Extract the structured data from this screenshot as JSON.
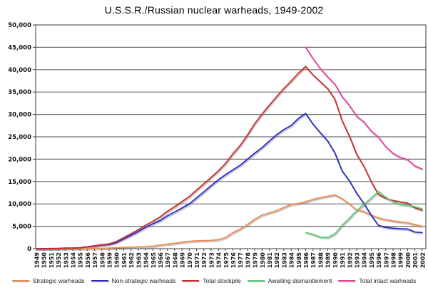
{
  "chart_data": {
    "type": "line",
    "title": "U.S.S.R./Russian nuclear warheads, 1949-2002",
    "xlabel": "",
    "ylabel": "",
    "grid": true,
    "legend_position": "bottom",
    "ylim": [
      0,
      50000
    ],
    "ytick_step": 5000,
    "ytick_labels": [
      "0",
      "5,000",
      "10,000",
      "15,000",
      "20,000",
      "25,000",
      "30,000",
      "35,000",
      "40,000",
      "45,000",
      "50,000"
    ],
    "x": [
      1949,
      1950,
      1951,
      1952,
      1953,
      1954,
      1955,
      1956,
      1957,
      1958,
      1959,
      1960,
      1961,
      1962,
      1963,
      1964,
      1965,
      1966,
      1967,
      1968,
      1969,
      1970,
      1971,
      1972,
      1973,
      1974,
      1975,
      1976,
      1977,
      1978,
      1979,
      1980,
      1981,
      1982,
      1983,
      1984,
      1985,
      1986,
      1987,
      1988,
      1989,
      1990,
      1991,
      1992,
      1993,
      1994,
      1995,
      1996,
      1997,
      1998,
      1999,
      2000,
      2001,
      2002
    ],
    "series": [
      {
        "name": "Strategic warheads",
        "color": "#F28A50",
        "values": [
          0,
          0,
          0,
          0,
          0,
          0,
          0,
          20,
          50,
          80,
          120,
          200,
          270,
          350,
          400,
          450,
          550,
          800,
          1000,
          1200,
          1450,
          1650,
          1750,
          1800,
          1850,
          2000,
          2500,
          3600,
          4400,
          5400,
          6600,
          7500,
          8000,
          8500,
          9200,
          9900,
          10100,
          10500,
          11000,
          11400,
          11700,
          12000,
          11200,
          10000,
          8700,
          8300,
          7500,
          6900,
          6500,
          6200,
          6000,
          5800,
          5400,
          5000
        ]
      },
      {
        "name": "Non-strategic warheads",
        "color": "#2929CC",
        "values": [
          1,
          5,
          25,
          50,
          120,
          150,
          200,
          406,
          610,
          789,
          940,
          1405,
          2201,
          2972,
          3838,
          4771,
          5579,
          6289,
          7339,
          8199,
          9088,
          9993,
          11342,
          12678,
          14065,
          15385,
          16555,
          17605,
          18644,
          19993,
          21335,
          22562,
          24049,
          25452,
          26604,
          27531,
          29097,
          30223,
          27859,
          25933,
          24105,
          21417,
          17395,
          15155,
          12401,
          10099,
          7478,
          5185,
          4764,
          4564,
          4451,
          4401,
          3726,
          3600
        ]
      },
      {
        "name": "Total stockpile",
        "color": "#CC2A2A",
        "values": [
          1,
          5,
          25,
          50,
          120,
          150,
          200,
          426,
          660,
          869,
          1060,
          1605,
          2471,
          3322,
          4238,
          5221,
          6129,
          7089,
          8339,
          9399,
          10538,
          11643,
          13092,
          14478,
          15915,
          17385,
          19055,
          21205,
          23044,
          25393,
          27935,
          30062,
          32049,
          33952,
          35804,
          37431,
          39197,
          40723,
          38859,
          37333,
          35805,
          33417,
          28595,
          25155,
          21101,
          18399,
          14978,
          12085,
          11264,
          10764,
          10451,
          10201,
          9126,
          8600
        ]
      },
      {
        "name": "Awaiting dismantlement",
        "color": "#5DCB6F",
        "values": [
          null,
          null,
          null,
          null,
          null,
          null,
          null,
          null,
          null,
          null,
          null,
          null,
          null,
          null,
          null,
          null,
          null,
          null,
          null,
          null,
          null,
          null,
          null,
          null,
          null,
          null,
          null,
          null,
          null,
          null,
          null,
          null,
          null,
          null,
          null,
          null,
          null,
          3600,
          3200,
          2600,
          2500,
          3300,
          5200,
          6800,
          8500,
          9900,
          11300,
          12800,
          11500,
          10500,
          9900,
          9700,
          9400,
          8900
        ]
      },
      {
        "name": "Total intact warheads",
        "color": "#EE3D9B",
        "values": [
          null,
          null,
          null,
          null,
          null,
          null,
          null,
          null,
          null,
          null,
          null,
          null,
          null,
          null,
          null,
          null,
          null,
          null,
          null,
          null,
          null,
          null,
          null,
          null,
          null,
          null,
          null,
          null,
          null,
          null,
          null,
          null,
          null,
          null,
          null,
          null,
          null,
          45000,
          42500,
          40300,
          38400,
          36800,
          34000,
          32000,
          29600,
          28300,
          26300,
          24900,
          22800,
          21300,
          20400,
          19900,
          18500,
          17800
        ]
      }
    ]
  }
}
